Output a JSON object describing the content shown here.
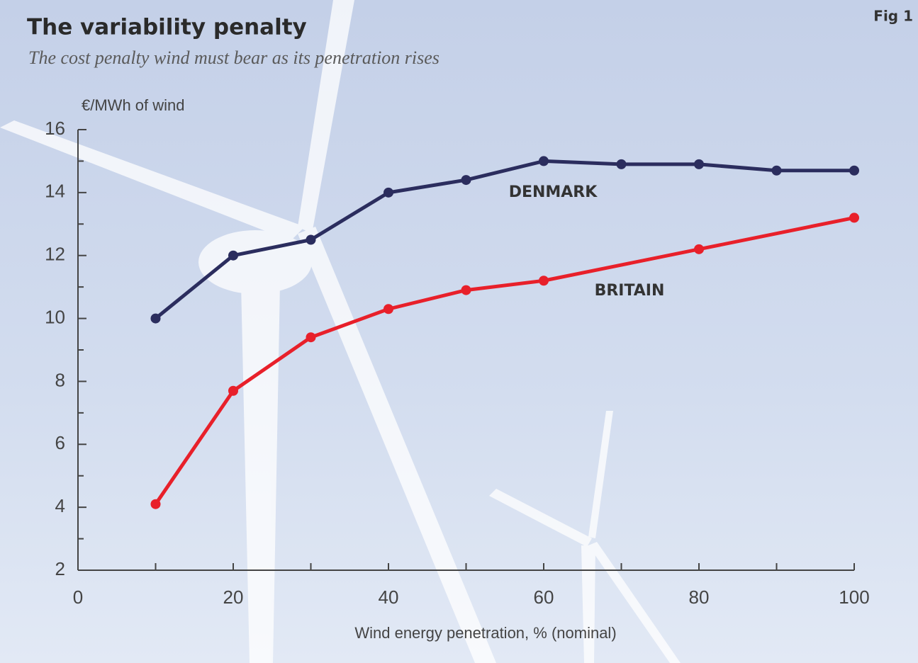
{
  "chart_data": {
    "type": "line",
    "title": "The variability penalty",
    "subtitle": "The cost penalty wind must bear as its penetration rises",
    "figure_label": "Fig 1",
    "y_label": "€/MWh of wind",
    "x_label": "Wind energy penetration, % (nominal)",
    "series": [
      {
        "name": "DENMARK",
        "color": "#2b2d5e",
        "x": [
          10,
          20,
          30,
          40,
          50,
          60,
          70,
          80,
          90,
          100
        ],
        "values": [
          10,
          12,
          12.5,
          14,
          14.4,
          15,
          14.9,
          14.9,
          14.7,
          14.7
        ]
      },
      {
        "name": "BRITAIN",
        "color": "#e8202a",
        "x": [
          10,
          20,
          30,
          40,
          50,
          60,
          80,
          100
        ],
        "values": [
          4.1,
          7.7,
          9.4,
          10.3,
          10.9,
          11.2,
          12.2,
          13.2
        ]
      }
    ],
    "xlim": [
      0,
      100
    ],
    "xticks": [
      0,
      20,
      40,
      60,
      80,
      100
    ],
    "xminorticks": [
      10,
      30,
      50,
      70,
      90
    ],
    "ylim": [
      2,
      16
    ],
    "yticks": [
      2,
      4,
      6,
      8,
      10,
      12,
      14,
      16
    ],
    "yminorticks": [
      3,
      5,
      7,
      9,
      11,
      13,
      15
    ]
  }
}
